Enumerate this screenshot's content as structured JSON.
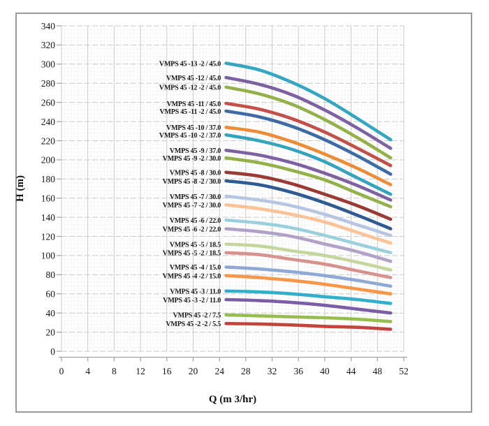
{
  "figure": {
    "background_color": "#ffffff",
    "frame_border_color": "#9a9a9a"
  },
  "chart_data": {
    "type": "line",
    "title": "",
    "xlabel": "Q (m 3/hr)",
    "ylabel": "H (m)",
    "xlim": [
      0,
      52
    ],
    "ylim": [
      0,
      340
    ],
    "x_ticks": [
      0,
      4,
      8,
      12,
      16,
      20,
      24,
      28,
      32,
      36,
      40,
      44,
      48,
      52
    ],
    "y_ticks": [
      0,
      20,
      40,
      60,
      80,
      100,
      120,
      140,
      160,
      180,
      200,
      220,
      240,
      260,
      280,
      300,
      320,
      340
    ],
    "grid": {
      "major": true,
      "minor": true
    },
    "legend_position": "inline-labels-left-of-curves",
    "x": [
      25,
      30,
      35,
      40,
      45,
      50
    ],
    "series": [
      {
        "name": "VMPS 45 -13 -2 / 45.0",
        "color": "#35A6C0",
        "values": [
          301,
          294,
          281,
          264,
          243,
          221
        ]
      },
      {
        "name": "VMPS 45 -12 / 45.0",
        "color": "#7E61A1",
        "values": [
          286,
          279,
          268,
          252,
          233,
          212
        ]
      },
      {
        "name": "VMPS 45 -12 -2 / 45.0",
        "color": "#93B049",
        "values": [
          276,
          269,
          258,
          242,
          223,
          202
        ]
      },
      {
        "name": "VMPS 45 -11 / 45.0",
        "color": "#C24F48",
        "values": [
          259,
          253,
          243,
          229,
          212,
          194
        ]
      },
      {
        "name": "VMPS 45 -11 -2 / 45.0",
        "color": "#3E6BA5",
        "values": [
          251,
          245,
          235,
          221,
          204,
          185
        ]
      },
      {
        "name": "VMPS 45 -10 / 37.0",
        "color": "#EC8C35",
        "values": [
          234,
          229,
          219,
          206,
          191,
          174
        ]
      },
      {
        "name": "VMPS 45 -10 -2 / 37.0",
        "color": "#34A4BE",
        "values": [
          226,
          220,
          211,
          198,
          181,
          164
        ]
      },
      {
        "name": "VMPS 45 -9 / 37.0",
        "color": "#7E61A1",
        "values": [
          210,
          205,
          197,
          186,
          173,
          158
        ]
      },
      {
        "name": "VMPS 45 -9 -2 / 30.0",
        "color": "#93B049",
        "values": [
          202,
          197,
          189,
          179,
          165,
          151
        ]
      },
      {
        "name": "VMPS 45 -8 / 30.0",
        "color": "#9A3B33",
        "values": [
          187,
          183,
          175,
          164,
          152,
          138
        ]
      },
      {
        "name": "VMPS 45 -8 -2 / 30.0",
        "color": "#2E5C92",
        "values": [
          178,
          174,
          166,
          155,
          142,
          128
        ]
      },
      {
        "name": "VMPS 45 -7 / 30.0",
        "color": "#B6C6E2",
        "values": [
          162,
          158,
          152,
          143,
          132,
          121
        ]
      },
      {
        "name": "VMPS 45 -7 -2 / 30.0",
        "color": "#F9C297",
        "values": [
          153,
          149,
          143,
          135,
          124,
          113
        ]
      },
      {
        "name": "VMPS 45 -6 / 22.0",
        "color": "#9AD0DC",
        "values": [
          137,
          134,
          129,
          121,
          112,
          103
        ]
      },
      {
        "name": "VMPS 45 -6 -2 / 22.0",
        "color": "#B2A1C7",
        "values": [
          128,
          125,
          120,
          112,
          104,
          94
        ]
      },
      {
        "name": "VMPS 45 -5 / 18.5",
        "color": "#C3D69B",
        "values": [
          112,
          110,
          105,
          100,
          93,
          85
        ]
      },
      {
        "name": "VMPS 45 -5 -2 / 18.5",
        "color": "#D6928F",
        "values": [
          103,
          101,
          96,
          91,
          84,
          77
        ]
      },
      {
        "name": "VMPS 45 -4 / 15.0",
        "color": "#8FA9D5",
        "values": [
          88,
          86,
          83,
          79,
          74,
          68
        ]
      },
      {
        "name": "VMPS 45 -4 -2 / 15.0",
        "color": "#F79646",
        "values": [
          79,
          77,
          74,
          70,
          65,
          60
        ]
      },
      {
        "name": "VMPS 45 -3 / 11.0",
        "color": "#30B0CB",
        "values": [
          63,
          62,
          60,
          57,
          54,
          50
        ]
      },
      {
        "name": "VMPS 45 -3 -2 / 11.0",
        "color": "#7B5CA6",
        "values": [
          54,
          53,
          51,
          48,
          44,
          40
        ]
      },
      {
        "name": "VMPS 45 -2 / 7.5",
        "color": "#96BE4F",
        "values": [
          38,
          37,
          36,
          35,
          33.5,
          31
        ]
      },
      {
        "name": "VMPS 45 -2 -2 / 5.5",
        "color": "#C2443C",
        "values": [
          29,
          28.5,
          27.5,
          26,
          25,
          23
        ]
      }
    ]
  }
}
